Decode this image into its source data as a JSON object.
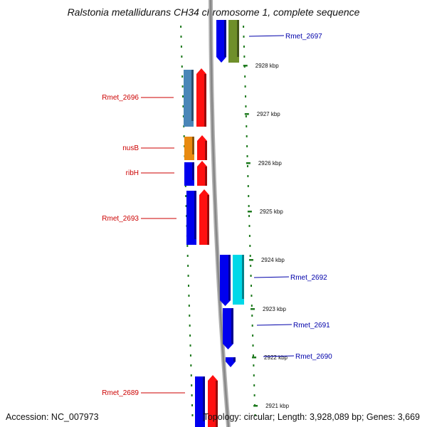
{
  "title": "Ralstonia metallidurans CH34 chromosome 1, complete sequence",
  "footer": {
    "accession": "Accession: NC_007973",
    "stats": "Topology: circular; Length: 3,928,089 bp; Genes: 3,669"
  },
  "colors": {
    "ruler": "#888888",
    "tick": "#1e7a1e",
    "left_label": "#cc0000",
    "right_label": "#0000aa"
  },
  "ticks": [
    {
      "label": "2928 kbp"
    },
    {
      "label": "2927 kbp"
    },
    {
      "label": "2926 kbp"
    },
    {
      "label": "2925 kbp"
    },
    {
      "label": "2924 kbp"
    },
    {
      "label": "2923 kbp"
    },
    {
      "label": "2922 kbp"
    },
    {
      "label": "2921 kbp"
    }
  ],
  "genes_left": [
    {
      "label": "Rmet_2696",
      "color": "#4a86b8"
    },
    {
      "label": "nusB",
      "color": "#e88a10"
    },
    {
      "label": "ribH",
      "color": "#0000ee"
    },
    {
      "label": "Rmet_2693",
      "color": "#0000ee"
    },
    {
      "label": "Rmet_2689",
      "color": "#0000ee"
    }
  ],
  "genes_right": [
    {
      "label": "Rmet_2697",
      "color": "#6f8f2a"
    },
    {
      "label": "Rmet_2692",
      "color": "#00d8e8"
    },
    {
      "label": "Rmet_2691",
      "color": "#0000ee"
    },
    {
      "label": "Rmet_2690",
      "color": "#0000ee"
    }
  ],
  "cog_color": "#ff1010",
  "strand_color": "#0000ee"
}
